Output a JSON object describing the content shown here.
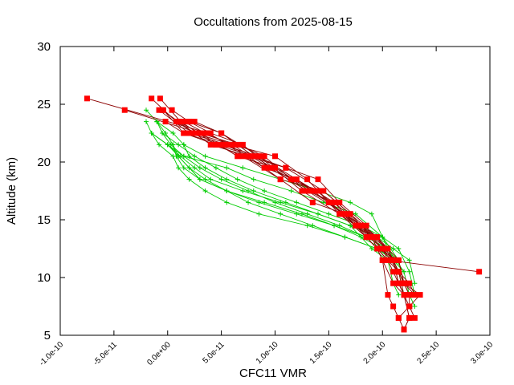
{
  "chart_data": {
    "type": "line",
    "title": "Occultations from 2025-08-15",
    "xlabel": "CFC11 VMR",
    "ylabel": "Altitude (km)",
    "xlim": [
      -1e-10,
      3e-10
    ],
    "ylim": [
      5,
      30
    ],
    "xticks": [
      -1e-10,
      -5e-11,
      0,
      5e-11,
      1e-10,
      1.5e-10,
      2e-10,
      2.5e-10,
      3e-10
    ],
    "xtick_labels": [
      "-1.0e-10",
      "-5.0e-11",
      "0.0e+00",
      "5.0e-11",
      "1.0e-10",
      "1.5e-10",
      "2.0e-10",
      "2.5e-10",
      "3.0e-10"
    ],
    "yticks": [
      5,
      10,
      15,
      20,
      25,
      30
    ],
    "ytick_labels": [
      "5",
      "10",
      "15",
      "20",
      "25",
      "30"
    ],
    "grid": false,
    "legend": "none",
    "series_colors": {
      "red": "#ff0000",
      "red_line": "#8b0000",
      "green": "#00cc00"
    },
    "red_series": [
      {
        "x": [
          -7.5e-11,
          3.8e-11,
          7.5e-11,
          1.05e-10,
          1.45e-10,
          1.7e-10,
          1.95e-10,
          2.15e-10,
          2.2e-10,
          2.35e-10,
          2.25e-10,
          2.15e-10,
          2.2e-10
        ],
        "y": [
          25.5,
          22.5,
          20.5,
          18.5,
          17.5,
          15.5,
          13.5,
          11.5,
          9.5,
          8.5,
          7.5,
          6.5,
          5.5
        ]
      },
      {
        "x": [
          -4e-11,
          3e-11,
          6.5e-11,
          1e-10,
          1.35e-10,
          1.65e-10,
          1.85e-10,
          2.05e-10,
          2.9e-10
        ],
        "y": [
          24.5,
          22.5,
          20.5,
          19.5,
          17.5,
          15.5,
          13.5,
          11.5,
          10.5
        ]
      },
      {
        "x": [
          -8e-12,
          2e-11,
          5.5e-11,
          9e-11,
          1.2e-10,
          1.55e-10,
          1.75e-10,
          2e-10,
          2.1e-10,
          2.2e-10,
          2.25e-10,
          2.2e-10
        ],
        "y": [
          24.5,
          22.5,
          21.5,
          19.5,
          18.5,
          16.5,
          14.5,
          12.5,
          10.5,
          8.5,
          6.5,
          5.5
        ]
      },
      {
        "x": [
          -7e-12,
          1.2e-11,
          4.5e-11,
          8e-11,
          1.15e-10,
          1.5e-10,
          1.8e-10,
          2e-10,
          2.15e-10,
          2.2e-10,
          2.25e-10,
          2.25e-10
        ],
        "y": [
          25.5,
          23.5,
          21.5,
          20.5,
          18.5,
          16.5,
          14.5,
          12.5,
          10.5,
          9.5,
          8.5,
          7.5
        ]
      },
      {
        "x": [
          -4e-12,
          1.5e-11,
          5e-11,
          8.5e-11,
          1.25e-10,
          1.6e-10,
          1.9e-10,
          2.1e-10,
          2.2e-10,
          2.3e-10
        ],
        "y": [
          24.5,
          22.5,
          21.5,
          20.5,
          17.5,
          15.5,
          13.5,
          11.5,
          9.5,
          8.5
        ]
      },
      {
        "x": [
          -1.5e-11,
          8e-12,
          2.5e-11,
          6e-11,
          9.5e-11,
          1.3e-10,
          1.65e-10,
          1.95e-10,
          2.1e-10,
          2.15e-10,
          2.2e-10
        ],
        "y": [
          25.5,
          23.5,
          22.5,
          21.5,
          19.5,
          17.5,
          15.5,
          13.5,
          11.5,
          9.5,
          8.5
        ]
      },
      {
        "x": [
          -5e-12,
          1e-11,
          4e-11,
          7.5e-11,
          1.1e-10,
          1.45e-10,
          1.7e-10,
          1.9e-10,
          2.05e-10,
          2.15e-10,
          2.25e-10,
          2.3e-10
        ],
        "y": [
          24.5,
          23.5,
          21.5,
          20.5,
          19.5,
          17.5,
          15.5,
          13.5,
          12.5,
          10.5,
          9.5,
          8.5
        ]
      },
      {
        "x": [
          4e-12,
          2e-11,
          5e-11,
          8e-11,
          1.1e-10,
          1.4e-10,
          1.6e-10,
          1.85e-10,
          2e-10,
          2.1e-10,
          2.2e-10
        ],
        "y": [
          24.5,
          23.5,
          22.5,
          20.5,
          19.5,
          18.5,
          16.5,
          14.5,
          11.5,
          9.5,
          8.5
        ]
      },
      {
        "x": [
          1e-11,
          3e-11,
          6.5e-11,
          9e-11,
          1.15e-10,
          1.4e-10,
          1.75e-10,
          1.95e-10,
          2.1e-10,
          2.15e-10,
          2.25e-10,
          2.3e-10
        ],
        "y": [
          23.5,
          22.5,
          21.5,
          20.5,
          18.5,
          17.5,
          14.5,
          13.5,
          11.5,
          9.5,
          7.5,
          6.5
        ]
      },
      {
        "x": [
          2e-11,
          4e-11,
          7e-11,
          9.5e-11,
          1.3e-10,
          1.55e-10,
          1.8e-10,
          2.05e-10,
          2.15e-10,
          2.2e-10
        ],
        "y": [
          23.5,
          22.5,
          21.5,
          19.5,
          17.5,
          16.5,
          14.5,
          12.5,
          10.5,
          9.5
        ]
      },
      {
        "x": [
          -2e-12,
          1.5e-11,
          4.5e-11,
          7e-11,
          1.05e-10,
          1.35e-10,
          1.65e-10,
          1.9e-10,
          2e-10,
          2.05e-10,
          2.1e-10,
          2.15e-10
        ],
        "y": [
          23.5,
          22.5,
          21.5,
          20.5,
          18.5,
          16.5,
          15.5,
          13.5,
          11.5,
          8.5,
          7.5,
          6.5
        ]
      },
      {
        "x": [
          2.5e-11,
          5e-11,
          8.5e-11,
          1.2e-10,
          1.5e-10,
          1.75e-10,
          1.95e-10,
          2.15e-10,
          2.2e-10,
          2.25e-10
        ],
        "y": [
          23.5,
          22.5,
          20.5,
          18.5,
          16.5,
          14.5,
          12.5,
          11.5,
          9.5,
          8.5
        ]
      },
      {
        "x": [
          1.5e-11,
          3.5e-11,
          6e-11,
          1e-10,
          1.3e-10,
          1.6e-10,
          1.85e-10,
          2.05e-10,
          2.15e-10,
          2.2e-10,
          2.25e-10,
          2.2e-10
        ],
        "y": [
          23.5,
          22.5,
          21.5,
          20.5,
          18.5,
          15.5,
          13.5,
          11.5,
          10.5,
          8.5,
          6.5,
          5.5
        ]
      }
    ],
    "green_series": [
      {
        "x": [
          -2e-11,
          -1e-11,
          5e-12,
          1.5e-11,
          3.5e-11,
          7e-11,
          1.05e-10,
          1.4e-10,
          1.7e-10,
          1.9e-10,
          2e-10,
          2.1e-10,
          2.2e-10,
          2.3e-10
        ],
        "y": [
          24.5,
          23.5,
          22.5,
          21.5,
          20.5,
          19.5,
          18.5,
          17.5,
          16.5,
          15.5,
          13.5,
          11.5,
          9.5,
          7.5
        ]
      },
      {
        "x": [
          -1e-11,
          -5e-12,
          3e-12,
          1.5e-11,
          5.5e-11,
          8e-11,
          1.15e-10,
          1.45e-10,
          1.75e-10,
          2e-10,
          2.15e-10,
          2.2e-10
        ],
        "y": [
          23.5,
          22.5,
          21.5,
          20.5,
          19.5,
          18.5,
          17.5,
          16.5,
          15.5,
          13.5,
          11.5,
          9.5
        ]
      },
      {
        "x": [
          -2e-11,
          -1.5e-11,
          0,
          1.2e-11,
          2.5e-11,
          4e-11,
          7e-11,
          1.05e-10,
          1.4e-10,
          1.7e-10,
          1.9e-10,
          2.05e-10,
          2.1e-10,
          2.15e-10
        ],
        "y": [
          23.5,
          22.5,
          21.5,
          20.5,
          19.5,
          18.5,
          17.5,
          16.5,
          15.5,
          14.5,
          12.5,
          11.5,
          9.5,
          8.5
        ]
      },
      {
        "x": [
          -1.5e-11,
          -8e-12,
          5e-12,
          1e-11,
          2e-11,
          3.5e-11,
          5.5e-11,
          8.5e-11,
          1.3e-10,
          1.65e-10,
          1.95e-10,
          2.1e-10,
          2.2e-10,
          2.25e-10
        ],
        "y": [
          22.5,
          21.5,
          20.5,
          19.5,
          18.5,
          17.5,
          16.5,
          15.5,
          14.5,
          13.5,
          12.5,
          11.5,
          9.5,
          8.5
        ]
      },
      {
        "x": [
          -1e-11,
          -2e-12,
          5e-12,
          8e-12,
          1.5e-11,
          3e-11,
          5.5e-11,
          8.5e-11,
          1.2e-10,
          1.55e-10,
          1.85e-10,
          2.05e-10,
          2.15e-10,
          2.2e-10
        ],
        "y": [
          23.5,
          22.5,
          21.5,
          20.5,
          19.5,
          18.5,
          17.5,
          16.5,
          15.5,
          14.5,
          13.5,
          12.5,
          10.5,
          8.5
        ]
      },
      {
        "x": [
          -1.5e-11,
          0,
          1e-11,
          2e-11,
          3.5e-11,
          5.5e-11,
          7.5e-11,
          1.05e-10,
          1.35e-10,
          1.65e-10,
          1.95e-10,
          2.1e-10,
          2.2e-10
        ],
        "y": [
          22.5,
          21.5,
          20.5,
          19.5,
          18.5,
          17.5,
          16.5,
          15.5,
          14.5,
          13.5,
          12.5,
          11.5,
          10.5
        ]
      },
      {
        "x": [
          -5e-12,
          1e-11,
          2.5e-11,
          4.5e-11,
          6.5e-11,
          9e-11,
          1.2e-10,
          1.5e-10,
          1.8e-10,
          2e-10,
          2.15e-10,
          2.25e-10,
          2.3e-10
        ],
        "y": [
          22.5,
          21.5,
          20.5,
          19.5,
          18.5,
          17.5,
          16.5,
          15.5,
          14.5,
          13.5,
          12.5,
          10.5,
          8.5
        ]
      },
      {
        "x": [
          0,
          1.5e-11,
          3e-11,
          5e-11,
          7.5e-11,
          1e-10,
          1.3e-10,
          1.6e-10,
          1.85e-10,
          2.05e-10,
          2.2e-10,
          2.25e-10
        ],
        "y": [
          21.5,
          20.5,
          19.5,
          18.5,
          17.5,
          16.5,
          15.5,
          14.5,
          13.5,
          12.5,
          10.5,
          8.5
        ]
      },
      {
        "x": [
          1.5e-11,
          2e-11,
          3.5e-11,
          5.5e-11,
          8e-11,
          1.1e-10,
          1.4e-10,
          1.7e-10,
          1.95e-10,
          2.1e-10,
          2.25e-10,
          2.3e-10
        ],
        "y": [
          21.5,
          20.5,
          19.5,
          18.5,
          17.5,
          16.5,
          15.5,
          14.5,
          13.5,
          12.5,
          11.5,
          9.5
        ]
      },
      {
        "x": [
          5e-12,
          1e-11,
          2e-11,
          3e-11,
          5.5e-11,
          9e-11,
          1.25e-10,
          1.55e-10,
          1.8e-10,
          2e-10,
          2.15e-10,
          2.2e-10
        ],
        "y": [
          21.5,
          20.5,
          19.5,
          18.5,
          17.5,
          16.5,
          15.5,
          14.5,
          13.5,
          12.5,
          11.5,
          9.5
        ]
      }
    ]
  }
}
